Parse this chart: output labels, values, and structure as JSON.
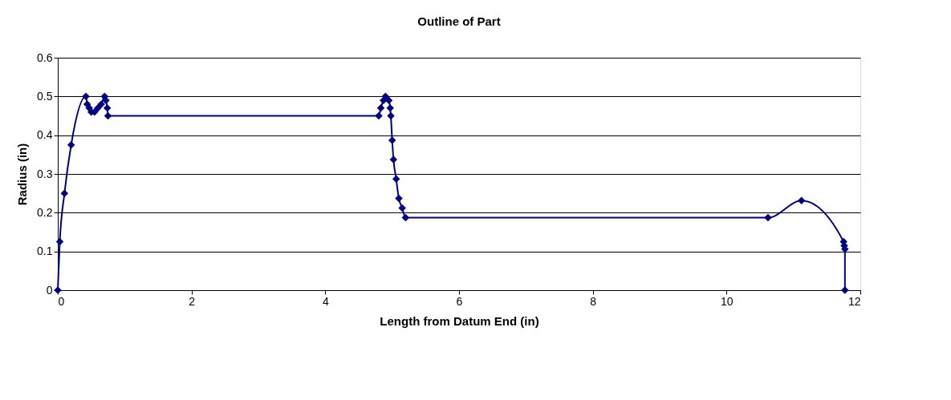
{
  "chart_data": {
    "type": "line",
    "title": "Outline of Part",
    "xlabel": "Length from Datum End (in)",
    "ylabel": "Radius (in)",
    "x": [
      0,
      0.03,
      0.1,
      0.2,
      0.42,
      0.44,
      0.47,
      0.5,
      0.55,
      0.6,
      0.65,
      0.7,
      0.72,
      0.74,
      0.75,
      4.8,
      4.83,
      4.87,
      4.9,
      4.95,
      4.97,
      4.98,
      5.0,
      5.02,
      5.06,
      5.1,
      5.15,
      5.2,
      10.62,
      11.12,
      11.75,
      11.76,
      11.77,
      11.77
    ],
    "series": [
      {
        "color": "#000080",
        "values": [
          0,
          0.125,
          0.25,
          0.375,
          0.5,
          0.48,
          0.47,
          0.46,
          0.46,
          0.47,
          0.48,
          0.5,
          0.49,
          0.47,
          0.45,
          0.45,
          0.47,
          0.49,
          0.5,
          0.49,
          0.47,
          0.45,
          0.387,
          0.337,
          0.287,
          0.237,
          0.212,
          0.187,
          0.187,
          0.231,
          0.125,
          0.115,
          0.106,
          0
        ]
      }
    ],
    "xlim": [
      0,
      12
    ],
    "xticks": [
      0,
      2,
      4,
      6,
      8,
      10,
      12
    ],
    "ylim": [
      0,
      0.6
    ],
    "yticks": [
      0,
      0.1,
      0.2,
      0.3,
      0.4,
      0.5,
      0.6
    ],
    "grid": "y",
    "legend": false,
    "marker": "diamond",
    "line_style": "solid"
  }
}
